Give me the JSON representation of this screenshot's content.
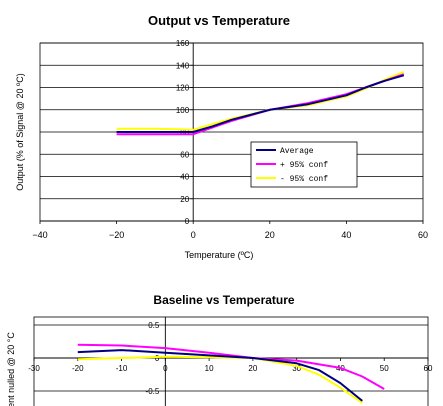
{
  "chart_data": [
    {
      "type": "line",
      "title": "Output vs Temperature",
      "xlabel": "Temperature (ºC)",
      "ylabel": "Output (% of Signal @ 20 ºC)",
      "xlim": [
        -40,
        60
      ],
      "ylim": [
        0,
        160
      ],
      "x_ticks": [
        "-40",
        "-20",
        "0",
        "20",
        "40",
        "60"
      ],
      "y_ticks": [
        "0",
        "20",
        "40",
        "60",
        "80",
        "100",
        "120",
        "140",
        "160"
      ],
      "grid": "horizontal",
      "legend_placement": "right",
      "series": [
        {
          "name": "Average",
          "color": "#000080",
          "points": [
            [
              -20,
              80
            ],
            [
              -10,
              80
            ],
            [
              0,
              80
            ],
            [
              5,
              85
            ],
            [
              10,
              91
            ],
            [
              20,
              100
            ],
            [
              30,
              105
            ],
            [
              40,
              113
            ],
            [
              45,
              120
            ],
            [
              50,
              126
            ],
            [
              55,
              131
            ]
          ]
        },
        {
          "name": "+ 95% conf",
          "color": "#ff00ff",
          "points": [
            [
              -20,
              78
            ],
            [
              -10,
              78
            ],
            [
              0,
              78
            ],
            [
              5,
              84
            ],
            [
              10,
              90
            ],
            [
              20,
              100
            ],
            [
              30,
              106
            ],
            [
              40,
              114
            ],
            [
              45,
              120
            ],
            [
              50,
              126
            ],
            [
              55,
              132
            ]
          ]
        },
        {
          "name": "- 95% conf",
          "color": "#ffff00",
          "points": [
            [
              -20,
              83
            ],
            [
              -10,
              83
            ],
            [
              0,
              82
            ],
            [
              5,
              87
            ],
            [
              10,
              92
            ],
            [
              20,
              100
            ],
            [
              30,
              104
            ],
            [
              40,
              112
            ],
            [
              45,
              119
            ],
            [
              50,
              127
            ],
            [
              55,
              134
            ]
          ]
        }
      ]
    },
    {
      "type": "line",
      "title": "Baseline vs Temperature",
      "ylabel": "ent nulled @ 20 °C",
      "xlim": [
        -30,
        60
      ],
      "ylim": [
        -1.0,
        0.5
      ],
      "x_ticks": [
        "-30",
        "-20",
        "-10",
        "0",
        "10",
        "20",
        "30",
        "40",
        "50",
        "60"
      ],
      "y_ticks": [
        "0.5",
        "0",
        "-0.5"
      ],
      "grid": "horizontal",
      "series": [
        {
          "name": "Average",
          "color": "#000080",
          "points": [
            [
              -20,
              0.09
            ],
            [
              -10,
              0.12
            ],
            [
              0,
              0.08
            ],
            [
              10,
              0.04
            ],
            [
              20,
              0.0
            ],
            [
              30,
              -0.08
            ],
            [
              35,
              -0.18
            ],
            [
              40,
              -0.38
            ],
            [
              45,
              -0.65
            ]
          ]
        },
        {
          "name": "+ 95% conf",
          "color": "#ff00ff",
          "points": [
            [
              -20,
              0.2
            ],
            [
              -10,
              0.19
            ],
            [
              0,
              0.15
            ],
            [
              10,
              0.08
            ],
            [
              20,
              0.0
            ],
            [
              30,
              -0.04
            ],
            [
              40,
              -0.15
            ],
            [
              45,
              -0.28
            ],
            [
              50,
              -0.47
            ]
          ]
        },
        {
          "name": "- 95% conf",
          "color": "#ffff00",
          "points": [
            [
              -20,
              -0.02
            ],
            [
              -10,
              0.0
            ],
            [
              0,
              0.02
            ],
            [
              10,
              0.01
            ],
            [
              20,
              0.0
            ],
            [
              30,
              -0.12
            ],
            [
              35,
              -0.25
            ],
            [
              40,
              -0.45
            ],
            [
              45,
              -0.68
            ]
          ]
        }
      ]
    }
  ]
}
